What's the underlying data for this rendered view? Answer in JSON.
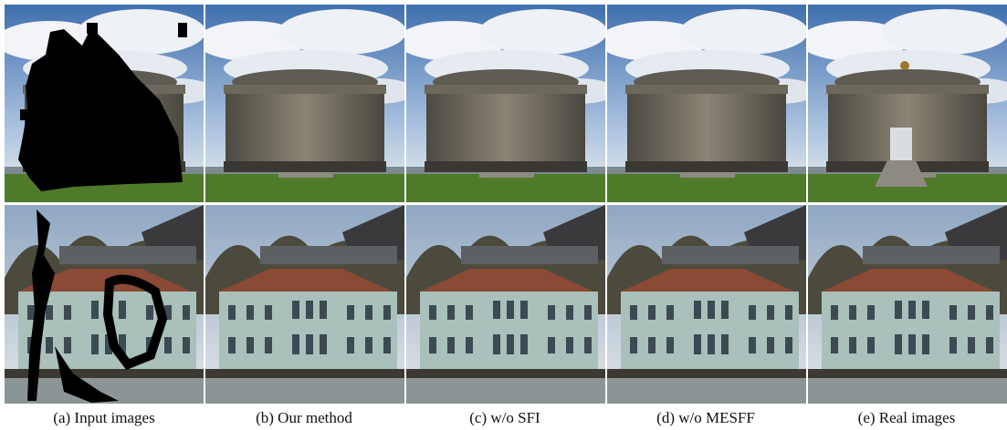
{
  "figure": {
    "captions": [
      "(a) Input images",
      "(b) Our method",
      "(c) w/o SFI",
      "(d) w/o MESFF",
      "(e) Real images"
    ]
  }
}
